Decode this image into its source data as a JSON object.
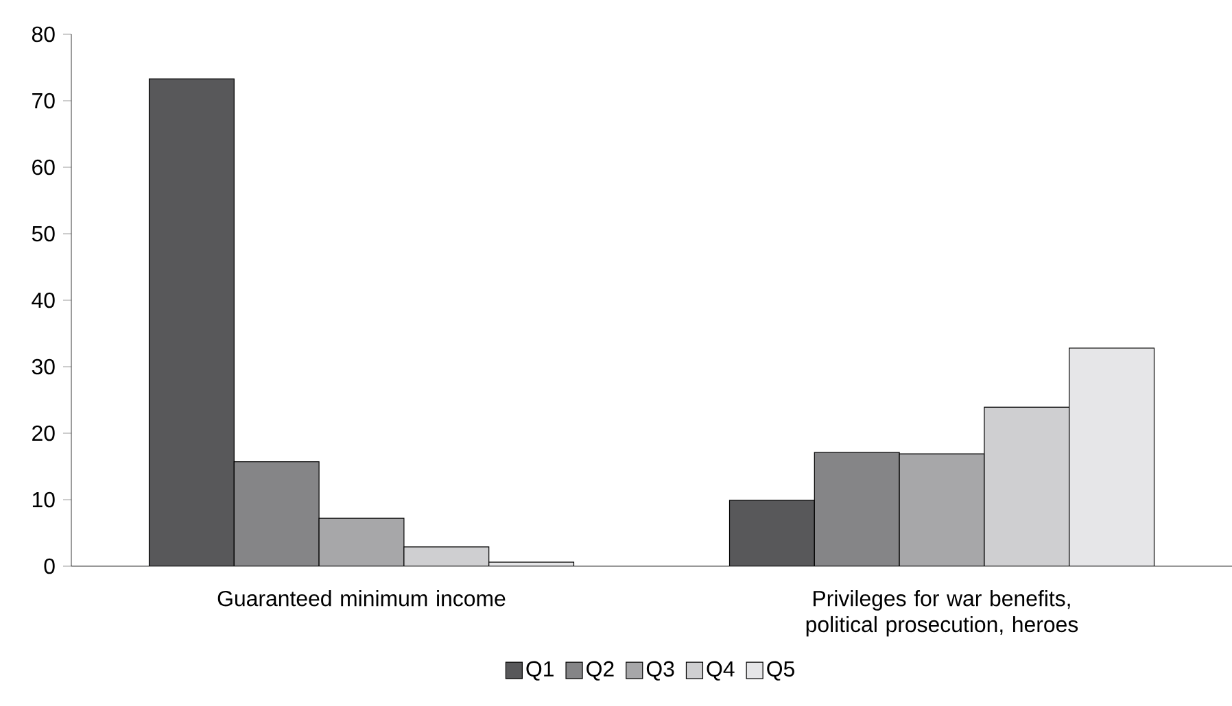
{
  "chart_data": {
    "type": "bar",
    "categories": [
      "Guaranteed minimum income",
      "Privileges for war benefits, political prosecution, heroes"
    ],
    "series": [
      {
        "name": "Q1",
        "color": "#58585a",
        "values": [
          73.3,
          9.9
        ]
      },
      {
        "name": "Q2",
        "color": "#858587",
        "values": [
          15.7,
          17.1
        ]
      },
      {
        "name": "Q3",
        "color": "#a7a7a9",
        "values": [
          7.2,
          16.9
        ]
      },
      {
        "name": "Q4",
        "color": "#cfcfd1",
        "values": [
          2.9,
          23.9
        ]
      },
      {
        "name": "Q5",
        "color": "#e6e6e8",
        "values": [
          0.6,
          32.8
        ]
      }
    ],
    "ylim": [
      0,
      80
    ],
    "yticks": [
      0,
      10,
      20,
      30,
      40,
      50,
      60,
      70,
      80
    ],
    "legend": "bottom"
  }
}
